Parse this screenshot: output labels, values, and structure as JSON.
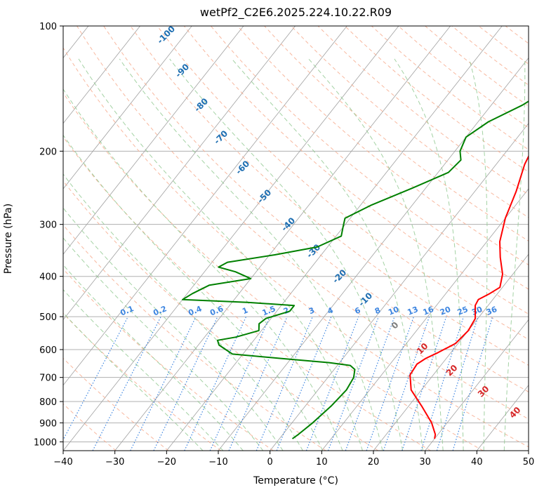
{
  "chart_data": {
    "type": "line",
    "diagram": "skew-T log-P",
    "title": "wetPf2_C2E6.2025.224.10.22.R09",
    "xlabel": "Temperature (°C)",
    "ylabel": "Pressure (hPa)",
    "xlim": [
      -40,
      50
    ],
    "ylim": [
      1050,
      100
    ],
    "yscale": "log",
    "grid": true,
    "xticks": [
      -40,
      -30,
      -20,
      -10,
      0,
      10,
      20,
      30,
      40,
      50
    ],
    "yticks": [
      100,
      200,
      300,
      400,
      500,
      600,
      700,
      800,
      900,
      1000
    ],
    "series": [
      {
        "id": "temperature",
        "color": "#ff0000",
        "points": [
          [
            30.0,
            983
          ],
          [
            29.5,
            960
          ],
          [
            27.0,
            900
          ],
          [
            22.5,
            820
          ],
          [
            18.0,
            750
          ],
          [
            15.5,
            690
          ],
          [
            15.2,
            650
          ],
          [
            16.0,
            630
          ],
          [
            17.5,
            610
          ],
          [
            19.5,
            580
          ],
          [
            20.0,
            540
          ],
          [
            19.5,
            505
          ],
          [
            17.5,
            470
          ],
          [
            17.2,
            455
          ],
          [
            18.5,
            440
          ],
          [
            19.5,
            425
          ],
          [
            18.0,
            395
          ],
          [
            15.0,
            360
          ],
          [
            12.5,
            330
          ],
          [
            10.0,
            290
          ],
          [
            8.0,
            250
          ],
          [
            5.5,
            215
          ],
          [
            4.5,
            195
          ],
          [
            4.0,
            170
          ],
          [
            3.5,
            150
          ],
          [
            2.0,
            130
          ],
          [
            2.2,
            115
          ],
          [
            4.0,
            105
          ],
          [
            5.5,
            100
          ]
        ]
      },
      {
        "id": "dewpoint",
        "color": "#008000",
        "points": [
          [
            2.5,
            983
          ],
          [
            3.0,
            960
          ],
          [
            4.0,
            900
          ],
          [
            5.0,
            820
          ],
          [
            5.5,
            750
          ],
          [
            5.0,
            700
          ],
          [
            4.0,
            670
          ],
          [
            2.5,
            655
          ],
          [
            -2.0,
            645
          ],
          [
            -12.0,
            630
          ],
          [
            -22.0,
            615
          ],
          [
            -24.0,
            600
          ],
          [
            -26.0,
            585
          ],
          [
            -27.0,
            570
          ],
          [
            -24.0,
            560
          ],
          [
            -20.5,
            540
          ],
          [
            -21.5,
            520
          ],
          [
            -21.0,
            505
          ],
          [
            -17.5,
            485
          ],
          [
            -17.5,
            470
          ],
          [
            -27.0,
            462
          ],
          [
            -40.0,
            455
          ],
          [
            -39.0,
            440
          ],
          [
            -37.0,
            420
          ],
          [
            -30.0,
            405
          ],
          [
            -34.0,
            390
          ],
          [
            -38.0,
            380
          ],
          [
            -37.0,
            370
          ],
          [
            -29.0,
            355
          ],
          [
            -22.0,
            340
          ],
          [
            -19.0,
            320
          ],
          [
            -20.0,
            305
          ],
          [
            -21.0,
            290
          ],
          [
            -18.0,
            270
          ],
          [
            -12.5,
            245
          ],
          [
            -8.0,
            225
          ],
          [
            -7.5,
            210
          ],
          [
            -9.0,
            200
          ],
          [
            -10.0,
            185
          ],
          [
            -8.0,
            170
          ],
          [
            -4.0,
            155
          ],
          [
            -1.0,
            140
          ],
          [
            -0.5,
            125
          ],
          [
            0.5,
            110
          ],
          [
            1.5,
            100
          ]
        ]
      }
    ],
    "dry_adiabat_labels": [
      "-100",
      "-90",
      "-80",
      "-70",
      "-60",
      "-50",
      "-40",
      "-30",
      "-20",
      "-10",
      "0",
      "10",
      "20",
      "30",
      "40"
    ],
    "mixing_ratio_labels": [
      "0.1",
      "0.2",
      "0.4",
      "0.6",
      "1",
      "1.5",
      "2",
      "3",
      "4",
      "6",
      "8",
      "10",
      "13",
      "16",
      "20",
      "25",
      "30",
      "36"
    ],
    "colors": {
      "temperature": "#ff0000",
      "dewpoint": "#008000",
      "isotherm": "#a0a0a0",
      "dry_adiabat": "#f7ab8e",
      "moist_adiabat": "#8dc78d",
      "mixing_ratio": "#3d85e0",
      "cold_label": "#1f6fb2",
      "warm_label": "#d62728",
      "zero_label": "#808080"
    }
  }
}
